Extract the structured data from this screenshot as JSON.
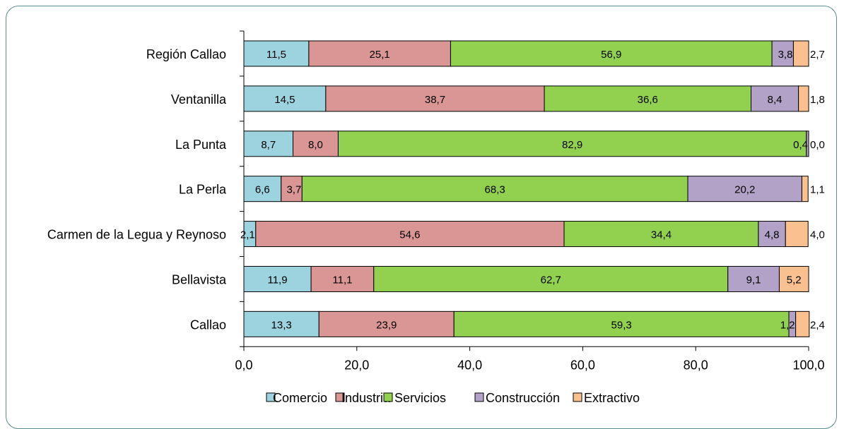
{
  "chart_data": {
    "type": "bar",
    "orientation": "horizontal",
    "stacked": true,
    "categories": [
      "Región Callao",
      "Ventanilla",
      "La Punta",
      "La Perla",
      "Carmen de la Legua y Reynoso",
      "Bellavista",
      "Callao"
    ],
    "series": [
      {
        "name": "Comercio",
        "color": "#9dd3df",
        "values": [
          11.5,
          14.5,
          8.7,
          6.6,
          2.1,
          11.9,
          13.3
        ],
        "labels": [
          "11,5",
          "14,5",
          "8,7",
          "6,6",
          "2,1",
          "11,9",
          "13,3"
        ]
      },
      {
        "name": "Industria",
        "color": "#da9694",
        "values": [
          25.1,
          38.7,
          8.0,
          3.7,
          54.6,
          11.1,
          23.9
        ],
        "labels": [
          "25,1",
          "38,7",
          "8,0",
          "3,7",
          "54,6",
          "11,1",
          "23,9"
        ]
      },
      {
        "name": "Servicios",
        "color": "#92d050",
        "values": [
          56.9,
          36.6,
          82.9,
          68.3,
          34.4,
          62.7,
          59.3
        ],
        "labels": [
          "56,9",
          "36,6",
          "82,9",
          "68,3",
          "34,4",
          "62,7",
          "59,3"
        ]
      },
      {
        "name": "Construcción",
        "color": "#b3a2c7",
        "values": [
          3.8,
          8.4,
          0.4,
          20.2,
          4.8,
          9.1,
          1.2
        ],
        "labels": [
          "3,8",
          "8,4",
          "0,4",
          "20,2",
          "4,8",
          "9,1",
          "1,2"
        ]
      },
      {
        "name": "Extractivo",
        "color": "#fac090",
        "values": [
          2.7,
          1.8,
          0.0,
          1.1,
          4.0,
          5.2,
          2.4
        ],
        "labels": [
          "2,7",
          "1,8",
          "0,0",
          "1,1",
          "4,0",
          "5,2",
          "2,4"
        ]
      }
    ],
    "xlim": [
      0,
      100
    ],
    "xticks": [
      0,
      20,
      40,
      60,
      80,
      100
    ],
    "xtick_labels": [
      "0,0",
      "20,0",
      "40,0",
      "60,0",
      "80,0",
      "100,0"
    ],
    "legend": "bottom",
    "grid": false
  }
}
